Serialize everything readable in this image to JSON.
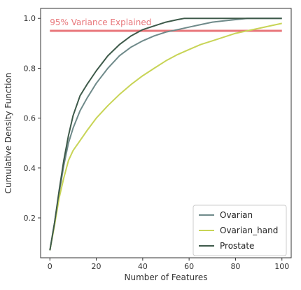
{
  "chart_data": {
    "type": "line",
    "title": "",
    "xlabel": "Number of Features",
    "ylabel": "Cumulative Density Function",
    "xlim": [
      -4,
      104
    ],
    "ylim": [
      0.04,
      1.04
    ],
    "xticks": [
      0,
      20,
      40,
      60,
      80,
      100
    ],
    "yticks": [
      0.2,
      0.4,
      0.6,
      0.8,
      1.0
    ],
    "ytick_labels": [
      "0.2",
      "0.4",
      "0.6",
      "0.8",
      "1.0"
    ],
    "grid": false,
    "legend_position": "lower-right",
    "threshold": {
      "value": 0.95,
      "label": "95% Variance Explained",
      "color": "#e8767a"
    },
    "series": [
      {
        "name": "Ovarian",
        "color": "#6f8a8a",
        "x": [
          0,
          2,
          4,
          6,
          8,
          10,
          13,
          16,
          20,
          25,
          30,
          35,
          40,
          45,
          50,
          55,
          60,
          65,
          70,
          75,
          80,
          85,
          90,
          95,
          100
        ],
        "y": [
          0.07,
          0.18,
          0.3,
          0.41,
          0.5,
          0.56,
          0.63,
          0.68,
          0.74,
          0.8,
          0.85,
          0.885,
          0.91,
          0.93,
          0.945,
          0.955,
          0.965,
          0.975,
          0.985,
          0.99,
          0.995,
          1.0,
          1.0,
          1.0,
          1.0
        ]
      },
      {
        "name": "Ovarian_hand",
        "color": "#c8d456",
        "x": [
          0,
          2,
          4,
          6,
          8,
          10,
          13,
          16,
          20,
          25,
          30,
          35,
          40,
          45,
          50,
          55,
          60,
          65,
          70,
          75,
          80,
          85,
          90,
          95,
          100
        ],
        "y": [
          0.07,
          0.17,
          0.28,
          0.36,
          0.43,
          0.47,
          0.51,
          0.55,
          0.6,
          0.65,
          0.695,
          0.735,
          0.77,
          0.8,
          0.83,
          0.855,
          0.875,
          0.895,
          0.91,
          0.925,
          0.94,
          0.95,
          0.96,
          0.97,
          0.98
        ]
      },
      {
        "name": "Prostate",
        "color": "#3e5a4a",
        "x": [
          0,
          2,
          4,
          6,
          8,
          10,
          13,
          16,
          20,
          25,
          30,
          35,
          40,
          45,
          50,
          55,
          58,
          60,
          70,
          80,
          90,
          100
        ],
        "y": [
          0.07,
          0.18,
          0.31,
          0.43,
          0.53,
          0.61,
          0.69,
          0.735,
          0.79,
          0.85,
          0.895,
          0.93,
          0.955,
          0.97,
          0.985,
          0.995,
          1.0,
          1.0,
          1.0,
          1.0,
          1.0,
          1.0
        ]
      }
    ]
  }
}
